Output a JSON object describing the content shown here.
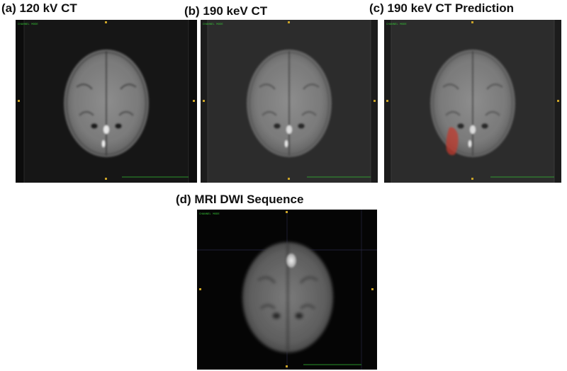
{
  "figure": {
    "panels": [
      {
        "label": "(a) 120 kV CT"
      },
      {
        "label": "(b) 190 keV CT"
      },
      {
        "label": "(c) 190 keV CT Prediction"
      },
      {
        "label": "(d) MRI DWI Sequence"
      }
    ],
    "colors": {
      "ct_background": "#0c0c0c",
      "ct_frame": "#1a1a1a",
      "ct_tissue": "#8a8a8a",
      "overlay_text": "#35c235",
      "orientation_marker": "#c9a227",
      "prediction_overlay": "#c0392b",
      "mri_tissue": "#6e6e6e"
    }
  }
}
